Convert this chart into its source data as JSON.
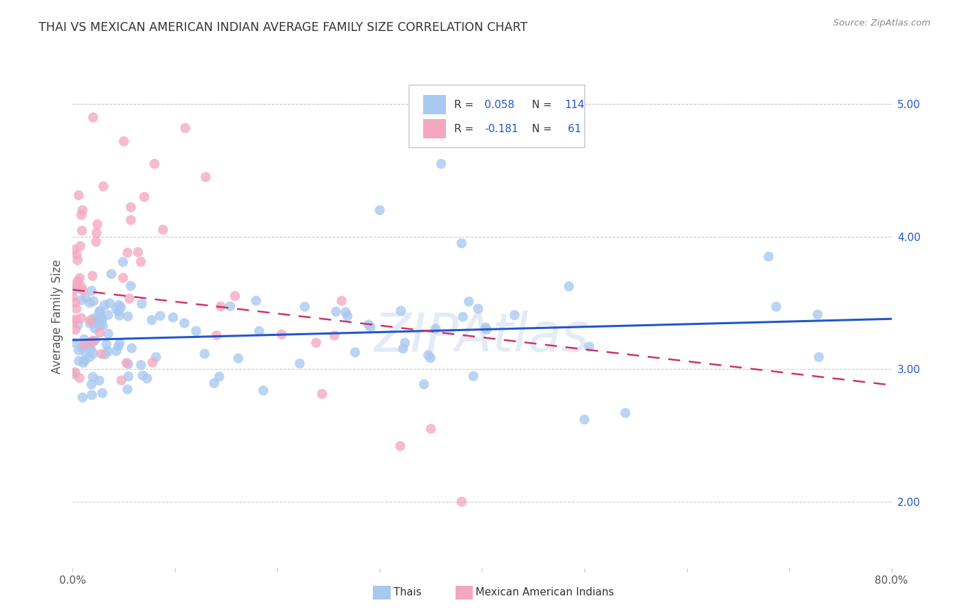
{
  "title": "THAI VS MEXICAN AMERICAN INDIAN AVERAGE FAMILY SIZE CORRELATION CHART",
  "source": "Source: ZipAtlas.com",
  "ylabel": "Average Family Size",
  "watermark": "ZIPAtlas",
  "blue_color": "#a8c8f0",
  "pink_color": "#f4a8c0",
  "blue_line_color": "#2255cc",
  "pink_line_color": "#cc3366",
  "background_color": "#ffffff",
  "grid_color": "#cccccc",
  "blue_r": 0.058,
  "blue_n": 114,
  "pink_r": -0.181,
  "pink_n": 61,
  "xmin": 0.0,
  "xmax": 0.8,
  "ymin": 1.5,
  "ymax": 5.3,
  "blue_intercept": 3.22,
  "blue_slope": 0.2,
  "pink_intercept": 3.6,
  "pink_slope": -0.9,
  "right_yticks": [
    2.0,
    3.0,
    4.0,
    5.0
  ],
  "axis_text_color": "#555555",
  "legend_r_color": "#2255cc",
  "title_color": "#333333",
  "source_color": "#888888"
}
